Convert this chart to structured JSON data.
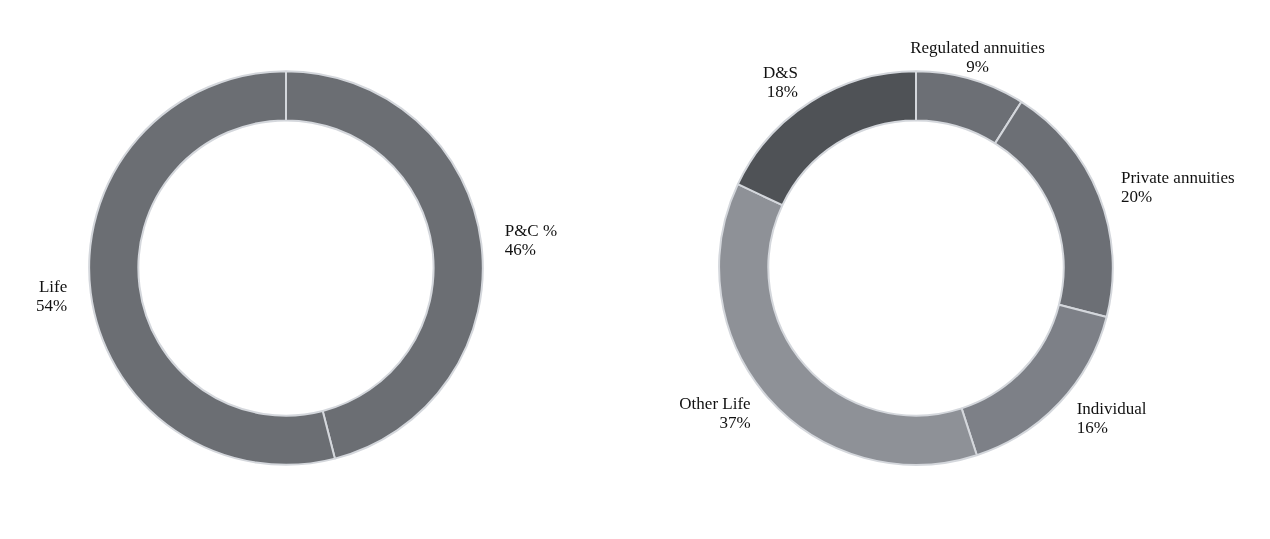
{
  "chart_data": [
    {
      "type": "donut",
      "categories": [
        "P&C %",
        "Life"
      ],
      "values": [
        46,
        54
      ],
      "colors": [
        "#6b6e73",
        "#6b6e73"
      ],
      "value_labels": [
        "46%",
        "54%"
      ]
    },
    {
      "type": "donut",
      "categories": [
        "Regulated annuities",
        "Private annuities",
        "Individual",
        "Other Life",
        "D&S"
      ],
      "values": [
        9,
        20,
        16,
        37,
        18
      ],
      "colors": [
        "#6c6f75",
        "#6c6f75",
        "#7d8087",
        "#8e9197",
        "#4f5256"
      ],
      "value_labels": [
        "9%",
        "20%",
        "16%",
        "37%",
        "18%"
      ]
    }
  ]
}
